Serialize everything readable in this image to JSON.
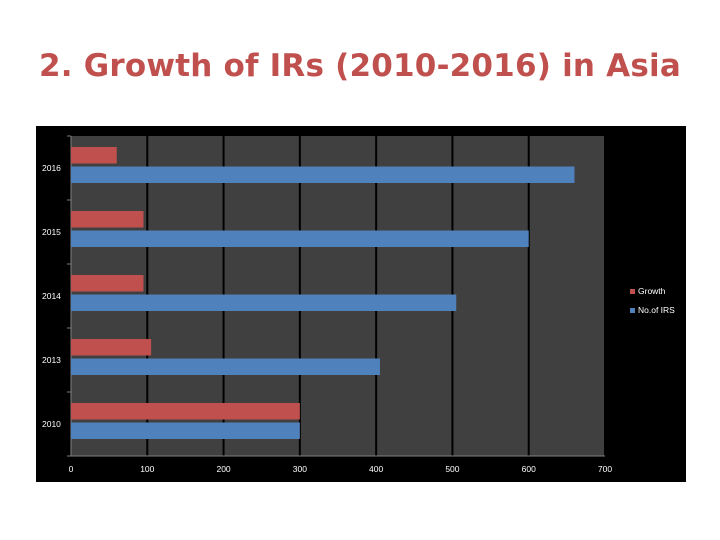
{
  "slide": {
    "title": "2. Growth of IRs (2010-2016) in Asia"
  },
  "colors": {
    "growth": "#c0504d",
    "irs": "#4f81bd",
    "plot_bg": "#404040",
    "frame_bg": "#000000",
    "grid": "#000000",
    "title": "#c0504d"
  },
  "chart_data": {
    "type": "bar",
    "orientation": "horizontal",
    "categories": [
      "2016",
      "2015",
      "2014",
      "2013",
      "2010"
    ],
    "series": [
      {
        "name": "Growth",
        "values": [
          60,
          95,
          95,
          105,
          300
        ]
      },
      {
        "name": "No.of IRS",
        "values": [
          660,
          600,
          505,
          405,
          300
        ]
      }
    ],
    "xlim": [
      0,
      700
    ],
    "xticks": [
      "0",
      "100",
      "200",
      "300",
      "400",
      "500",
      "600",
      "700"
    ],
    "grid": true,
    "legend_position": "right"
  }
}
